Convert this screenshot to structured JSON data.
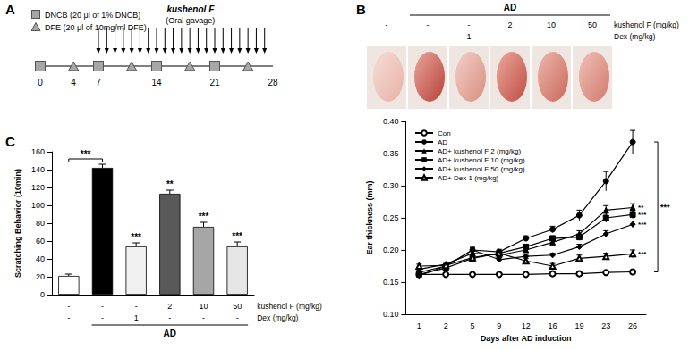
{
  "panel_labels": [
    "A",
    "B",
    "C"
  ],
  "timeline": {
    "legend": [
      {
        "marker": "square",
        "text": "DNCB (20 μl of 1% DNCB)"
      },
      {
        "marker": "triangle",
        "text": "DFE (20 μl of 10mg/ml DFE)"
      }
    ],
    "title": "kushenol F",
    "subtitle": "(Oral gavage)",
    "ticks": [
      0,
      4,
      7,
      14,
      21,
      28
    ],
    "dncb_days": [
      0,
      7,
      14,
      21
    ],
    "dfe_days": [
      4,
      11,
      18,
      25
    ],
    "gavage_days": [
      7,
      8,
      9,
      10,
      11,
      12,
      13,
      14,
      15,
      16,
      17,
      18,
      19,
      20,
      21,
      22,
      23,
      24,
      25,
      26,
      27
    ]
  },
  "ear_photos": {
    "group_label": "AD",
    "group_span": [
      1,
      5
    ],
    "rows": [
      {
        "name": "kushenol F",
        "unit": "(mg/kg)",
        "cells": [
          "-",
          "-",
          "-",
          "2",
          "10",
          "50"
        ]
      },
      {
        "name": "Dex",
        "unit": "(mg/kg)",
        "cells": [
          "-",
          "-",
          "1",
          "-",
          "-",
          "-"
        ]
      }
    ]
  },
  "chart_data": [
    {
      "type": "bar",
      "y_label": "Scratching Behavior (10min)",
      "categories": [
        "-\n-",
        "-\n-",
        "-\n1",
        "2\n-",
        "10\n-",
        "50\n-"
      ],
      "row_labels": [
        {
          "name": "kushenol F",
          "unit": "(mg/kg)"
        },
        {
          "name": "Dex",
          "unit": "(mg/kg)"
        }
      ],
      "group_label": "AD",
      "group_span": [
        1,
        5
      ],
      "values": [
        21,
        142,
        54,
        113,
        76,
        54
      ],
      "errors": [
        2,
        4,
        4,
        4,
        5,
        5
      ],
      "colors": [
        "#ffffff",
        "#000000",
        "#f0f0f0",
        "#595959",
        "#a6a6a6",
        "#e6e6e6"
      ],
      "significance": [
        null,
        null,
        "***",
        "**",
        "***",
        "***"
      ],
      "comparisons": [
        {
          "from": 0,
          "to": 1,
          "label": "***"
        }
      ],
      "ylim": [
        0,
        160
      ],
      "yticks": [
        0,
        20,
        40,
        60,
        80,
        100,
        120,
        140,
        160
      ],
      "grid": false
    },
    {
      "type": "line",
      "x_label": "Days after AD induction",
      "y_label": "Ear thickness (mm)",
      "categories": [
        "1",
        "2",
        "5",
        "9",
        "12",
        "16",
        "19",
        "23",
        "26"
      ],
      "ylim": [
        0.1,
        0.4
      ],
      "yticks": [
        {
          "value": 0.1,
          "label": "0.10"
        },
        0.15,
        {
          "value": 0.2,
          "label": "0.20"
        },
        0.25,
        {
          "value": 0.3,
          "label": "0.30"
        },
        0.35,
        {
          "value": 0.4,
          "label": "0.40"
        }
      ],
      "grid": false,
      "legend": "upper left",
      "series": [
        {
          "name": "Con",
          "color": "#000000",
          "marker": "open-circle",
          "significance": null,
          "values": [
            0.162,
            0.162,
            0.162,
            0.162,
            0.162,
            0.163,
            0.163,
            0.165,
            0.166
          ],
          "errors": [
            0.002,
            0.002,
            0.002,
            0.002,
            0.002,
            0.002,
            0.002,
            0.002,
            0.002
          ]
        },
        {
          "name": "AD",
          "color": "#000000",
          "marker": "circle",
          "significance": null,
          "values": [
            0.165,
            0.175,
            0.2,
            0.197,
            0.218,
            0.232,
            0.254,
            0.307,
            0.368
          ],
          "errors": [
            0.004,
            0.003,
            0.004,
            0.004,
            0.004,
            0.005,
            0.008,
            0.015,
            0.018
          ]
        },
        {
          "name": "AD+ kushenol F 2 (mg/kg)",
          "color": "#000000",
          "marker": "triangle",
          "significance": "**",
          "values": [
            0.17,
            0.178,
            0.195,
            0.192,
            0.2,
            0.212,
            0.225,
            0.262,
            0.266
          ],
          "errors": [
            0.003,
            0.003,
            0.004,
            0.004,
            0.003,
            0.004,
            0.005,
            0.007,
            0.006
          ]
        },
        {
          "name": "AD+ kushenol F 10 (mg/kg)",
          "color": "#000000",
          "marker": "square",
          "significance": "***",
          "values": [
            0.162,
            0.172,
            0.187,
            0.195,
            0.205,
            0.218,
            0.22,
            0.25,
            0.255
          ],
          "errors": [
            0.003,
            0.003,
            0.004,
            0.004,
            0.003,
            0.004,
            0.005,
            0.007,
            0.006
          ]
        },
        {
          "name": "AD+ kushenol F 50 (mg/kg)",
          "color": "#000000",
          "marker": "diamond",
          "significance": "***",
          "values": [
            0.16,
            0.175,
            0.2,
            0.185,
            0.19,
            0.192,
            0.205,
            0.225,
            0.24
          ],
          "errors": [
            0.003,
            0.003,
            0.004,
            0.003,
            0.003,
            0.003,
            0.004,
            0.005,
            0.005
          ]
        },
        {
          "name": "AD+ Dex 1 (mg/kg)",
          "color": "#000000",
          "marker": "open-triangle",
          "significance": "***",
          "values": [
            0.175,
            0.176,
            0.188,
            0.195,
            0.183,
            0.175,
            0.187,
            0.19,
            0.194
          ],
          "errors": [
            0.003,
            0.003,
            0.004,
            0.004,
            0.004,
            0.004,
            0.005,
            0.005,
            0.006
          ]
        }
      ],
      "comparisons": [
        {
          "from": "AD",
          "to": "Con",
          "label": "***"
        }
      ]
    }
  ]
}
